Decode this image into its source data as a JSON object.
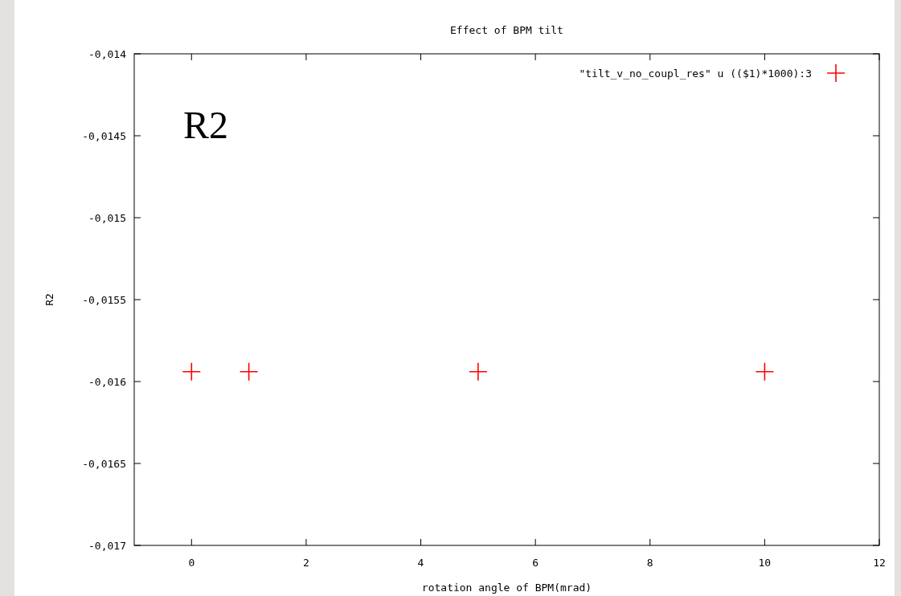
{
  "chart_data": {
    "type": "scatter",
    "title": "Effect of BPM tilt",
    "xlabel": "rotation angle of BPM(mrad)",
    "ylabel": "R2",
    "annotations": [
      "R2"
    ],
    "x": [
      0,
      1,
      5,
      10
    ],
    "series": [
      {
        "name": "\"tilt_v_no_coupl_res\" u (($1)*1000):3",
        "color": "#ff0000",
        "values": [
          -0.01594,
          -0.01594,
          -0.01594,
          -0.01594
        ]
      }
    ],
    "xlim": [
      -1,
      12
    ],
    "xticks": [
      0,
      2,
      4,
      6,
      8,
      10,
      12
    ],
    "ylim": [
      -0.017,
      -0.014
    ],
    "yticks": [
      {
        "value": -0.017,
        "label": "-0,017"
      },
      {
        "value": -0.0165,
        "label": "-0,0165"
      },
      {
        "value": -0.016,
        "label": "-0,016"
      },
      {
        "value": -0.0155,
        "label": "-0,0155"
      },
      {
        "value": -0.015,
        "label": "-0,015"
      },
      {
        "value": -0.0145,
        "label": "-0,0145"
      },
      {
        "value": -0.014,
        "label": "-0,014"
      }
    ],
    "grid": false,
    "legend": "top right",
    "marker": "cross"
  }
}
